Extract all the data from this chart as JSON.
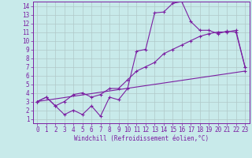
{
  "bg_color": "#c8eaea",
  "line_color": "#7b1fa2",
  "grid_color": "#b0c8c8",
  "xlabel": "Windchill (Refroidissement éolien,°C)",
  "xlim": [
    -0.5,
    23.5
  ],
  "ylim": [
    0.5,
    14.5
  ],
  "xticks": [
    0,
    1,
    2,
    3,
    4,
    5,
    6,
    7,
    8,
    9,
    10,
    11,
    12,
    13,
    14,
    15,
    16,
    17,
    18,
    19,
    20,
    21,
    22,
    23
  ],
  "yticks": [
    1,
    2,
    3,
    4,
    5,
    6,
    7,
    8,
    9,
    10,
    11,
    12,
    13,
    14
  ],
  "line1_x": [
    0,
    1,
    2,
    3,
    4,
    5,
    6,
    7,
    8,
    9,
    10,
    11,
    12,
    13,
    14,
    15,
    16,
    17,
    18,
    19,
    20,
    21,
    22,
    23
  ],
  "line1_y": [
    3.0,
    3.5,
    2.5,
    1.5,
    2.0,
    1.5,
    2.5,
    1.3,
    3.5,
    3.2,
    4.5,
    8.8,
    9.0,
    13.2,
    13.3,
    14.3,
    14.5,
    12.2,
    11.2,
    11.2,
    10.8,
    11.1,
    11.0,
    7.0
  ],
  "line2_x": [
    0,
    1,
    2,
    3,
    4,
    5,
    6,
    7,
    8,
    9,
    10,
    11,
    12,
    13,
    14,
    15,
    16,
    17,
    18,
    19,
    20,
    21,
    22,
    23
  ],
  "line2_y": [
    3.0,
    3.5,
    2.5,
    3.0,
    3.8,
    4.0,
    3.5,
    3.8,
    4.5,
    4.5,
    5.5,
    6.5,
    7.0,
    7.5,
    8.5,
    9.0,
    9.5,
    10.0,
    10.5,
    10.8,
    11.0,
    11.0,
    11.2,
    7.0
  ],
  "line3_x": [
    0,
    23
  ],
  "line3_y": [
    3.0,
    6.5
  ],
  "markersize": 2.5,
  "linewidth": 0.8,
  "tick_fontsize": 5.5,
  "xlabel_fontsize": 5.5
}
